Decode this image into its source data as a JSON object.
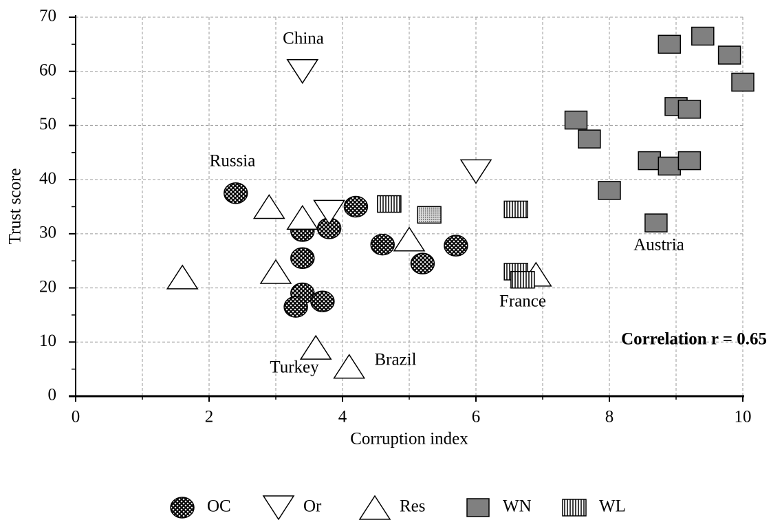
{
  "chart_data": {
    "type": "scatter",
    "x_label": "Corruption index",
    "y_label": "Trust score",
    "xlim": [
      0,
      10
    ],
    "ylim": [
      0,
      70
    ],
    "xticks": [
      0,
      2,
      4,
      6,
      8,
      10
    ],
    "yticks": [
      0,
      10,
      20,
      30,
      40,
      50,
      60,
      70
    ],
    "x_minor_ticks": [
      1,
      3,
      5,
      7,
      9
    ],
    "y_minor_ticks": [
      5,
      15,
      25,
      35,
      45,
      55,
      65
    ],
    "grid": true,
    "legend": "bottom",
    "series": [
      {
        "name": "OC",
        "marker": "ellipse-crosshatch",
        "color": "#000000",
        "x": [
          2.4,
          3.4,
          3.8,
          3.4,
          3.4,
          3.3,
          3.7,
          4.2,
          4.6,
          5.2,
          5.7
        ],
        "y": [
          37.5,
          30.5,
          31,
          25.5,
          19,
          16.5,
          17.5,
          35,
          28,
          24.5,
          27.8
        ]
      },
      {
        "name": "Or",
        "marker": "triangle-down",
        "color": "#ffffff",
        "x": [
          3.4,
          3.8,
          6.0
        ],
        "y": [
          60,
          34,
          41.5
        ]
      },
      {
        "name": "Res",
        "marker": "triangle-up",
        "color": "#ffffff",
        "x": [
          1.6,
          2.9,
          3.0,
          3.4,
          3.6,
          4.1,
          5.0,
          6.9
        ],
        "y": [
          22,
          35,
          23,
          33,
          9,
          5.5,
          29,
          22.5
        ]
      },
      {
        "name": "WN",
        "marker": "square",
        "color": "#808080",
        "x": [
          7.5,
          7.7,
          8.0,
          8.6,
          8.7,
          8.9,
          8.9,
          9.0,
          9.2,
          9.2,
          9.4,
          9.8,
          10.0
        ],
        "y": [
          51,
          47.5,
          38,
          43.5,
          32,
          65,
          42.5,
          53.5,
          53,
          43.5,
          66.5,
          63,
          58
        ]
      },
      {
        "name": "WL",
        "marker": "square-stripes",
        "color": "#000000",
        "x": [
          4.7,
          6.6,
          6.6,
          6.7
        ],
        "y": [
          35.5,
          34.5,
          23,
          21.5
        ]
      },
      {
        "marker": "square-dots",
        "color": "#000000",
        "x": [
          5.3
        ],
        "y": [
          33.5
        ]
      }
    ],
    "annotations": [
      "China",
      "Russia",
      "Austria",
      "France",
      "Turkey",
      "Brazil",
      "Correlation r = 0.65"
    ]
  }
}
